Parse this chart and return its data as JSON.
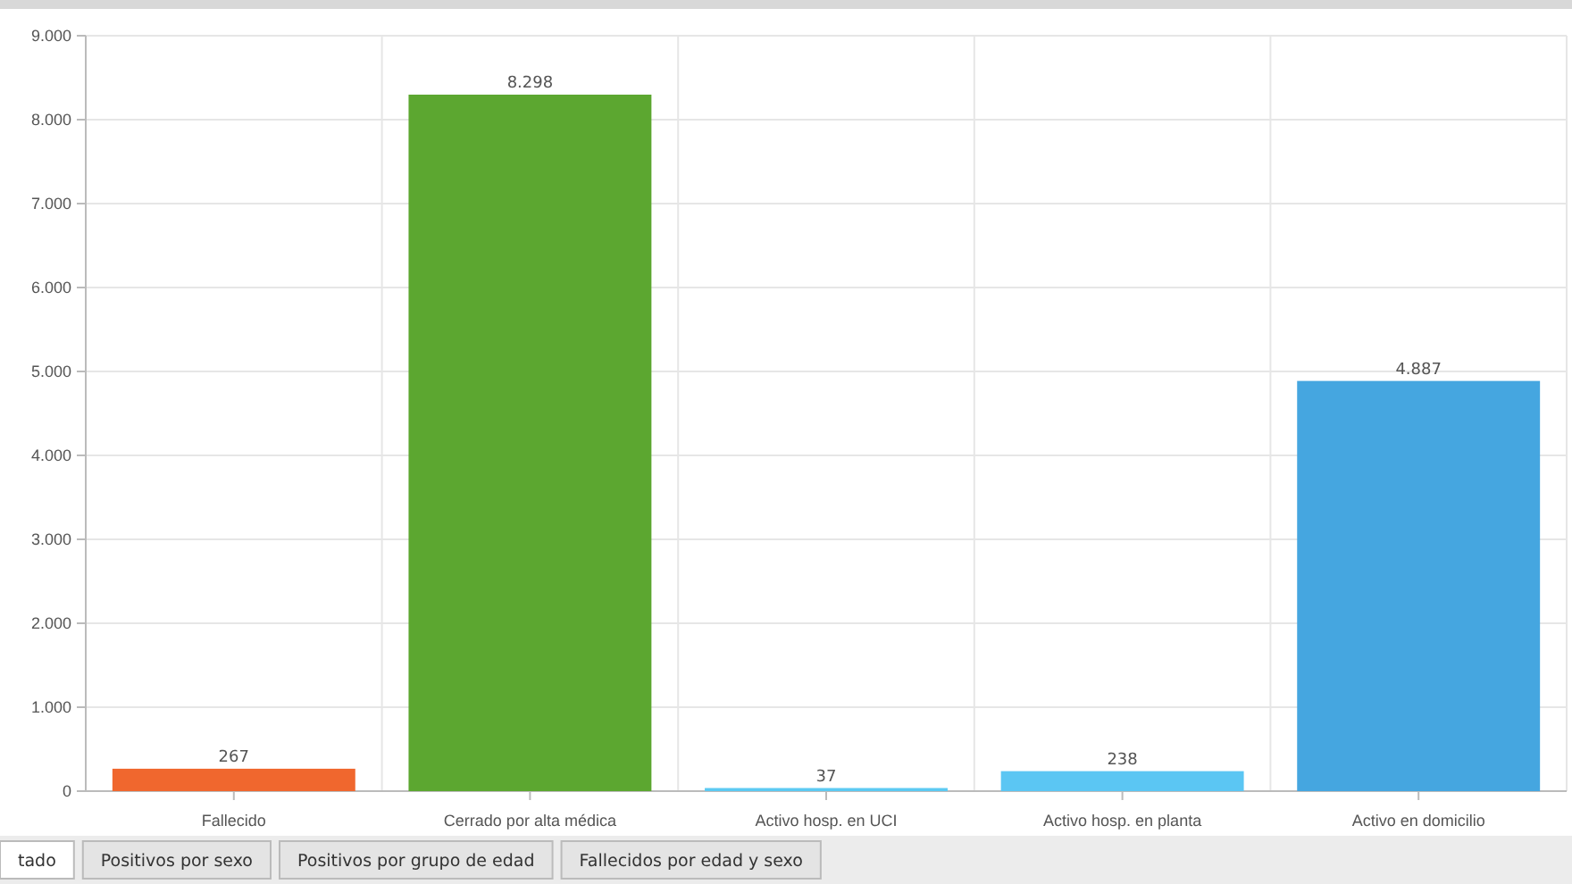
{
  "chart_data": {
    "type": "bar",
    "categories": [
      "Fallecido",
      "Cerrado por alta médica",
      "Activo hosp. en UCI",
      "Activo hosp. en planta",
      "Activo en domicilio"
    ],
    "values": [
      267,
      8298,
      37,
      238,
      4887
    ],
    "colors": [
      "#f0672e",
      "#5ca730",
      "#5ccaf2",
      "#5bc6f3",
      "#45a6e0"
    ],
    "value_labels": [
      "267",
      "8.298",
      "37",
      "238",
      "4.887"
    ],
    "ylim": [
      0,
      9000
    ],
    "yticks": [
      0,
      {
        "value": 1000,
        "label": "1.000"
      },
      {
        "value": 2000,
        "label": "2.000"
      },
      {
        "value": 3000,
        "label": "3.000"
      },
      {
        "value": 4000,
        "label": "4.000"
      },
      {
        "value": 5000,
        "label": "5.000"
      },
      {
        "value": 6000,
        "label": "6.000"
      },
      {
        "value": 7000,
        "label": "7.000"
      },
      {
        "value": 8000,
        "label": "8.000"
      },
      {
        "value": 9000,
        "label": "9.000"
      }
    ],
    "grid": true,
    "annotations": [
      "tado",
      "Positivos por sexo",
      "Positivos por grupo de edad",
      "Fallecidos por edad y sexo"
    ]
  }
}
